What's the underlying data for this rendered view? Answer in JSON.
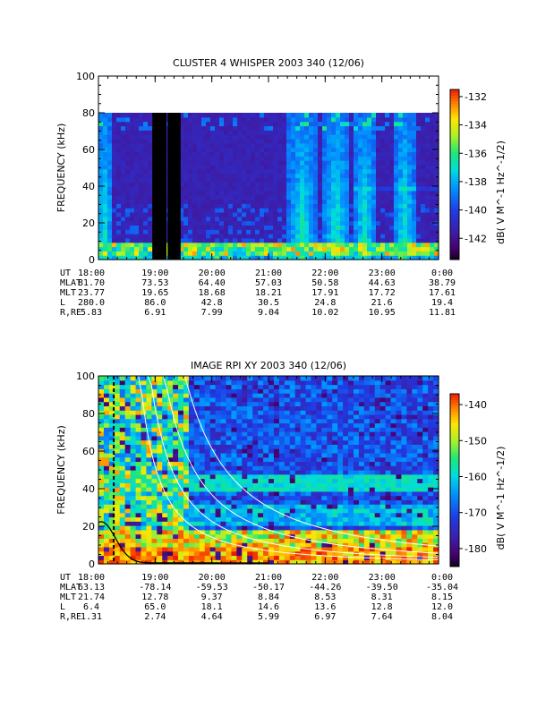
{
  "chart_data": [
    {
      "type": "heatmap",
      "title": "CLUSTER 4 WHISPER 2003 340 (12/06)",
      "ylabel": "FREQUENCY (kHz)",
      "ylim": [
        0,
        100
      ],
      "y_ticks": [
        "0",
        "20",
        "40",
        "60",
        "80",
        "100"
      ],
      "colorbar_label": "dB( V M^-1 Hz^-1/2)",
      "colorbar_ticks": [
        "-132",
        "-134",
        "-136",
        "-138",
        "-140",
        "-142"
      ],
      "colorbar_range": [
        -143.5,
        -131.5
      ],
      "data_upper_limit_khz": 80,
      "gaps_hours": [
        [
          18.95,
          19.2
        ],
        [
          19.22,
          19.45
        ]
      ],
      "ephemeris": {
        "UT": [
          "18:00",
          "19:00",
          "20:00",
          "21:00",
          "22:00",
          "23:00",
          "0:00"
        ],
        "MLAT": [
          "81.70",
          "73.53",
          "64.40",
          "57.03",
          "50.58",
          "44.63",
          "38.79"
        ],
        "MLT": [
          "23.77",
          "19.65",
          "18.68",
          "18.21",
          "17.91",
          "17.72",
          "17.61"
        ],
        "L": [
          "280.0",
          "86.0",
          "42.8",
          "30.5",
          "24.8",
          "21.6",
          "19.4"
        ],
        "R,RE": [
          "5.83",
          "6.91",
          "7.99",
          "9.04",
          "10.02",
          "10.95",
          "11.81"
        ]
      }
    },
    {
      "type": "heatmap",
      "title": "IMAGE RPI XY 2003 340 (12/06)",
      "ylabel": "FREQUENCY (kHz)",
      "ylim": [
        0,
        100
      ],
      "y_ticks": [
        "0",
        "20",
        "40",
        "60",
        "80",
        "100"
      ],
      "colorbar_label": "dB( V M^-1 Hz^-1/2)",
      "colorbar_ticks": [
        "-140",
        "-150",
        "-160",
        "-170",
        "-180"
      ],
      "colorbar_range": [
        -185,
        -137
      ],
      "ephemeris": {
        "UT": [
          "18:00",
          "19:00",
          "20:00",
          "21:00",
          "22:00",
          "23:00",
          "0:00"
        ],
        "MLAT": [
          "63.13",
          "-78.14",
          "-59.53",
          "-50.17",
          "-44.26",
          "-39.50",
          "-35.04"
        ],
        "MLT": [
          "21.74",
          "12.78",
          "9.37",
          "8.84",
          "8.53",
          "8.31",
          "8.15"
        ],
        "L": [
          "6.4",
          "65.0",
          "18.1",
          "14.6",
          "13.6",
          "12.8",
          "12.0"
        ],
        "R,RE": [
          "1.31",
          "2.74",
          "4.64",
          "5.99",
          "6.97",
          "7.64",
          "8.04"
        ]
      }
    }
  ]
}
